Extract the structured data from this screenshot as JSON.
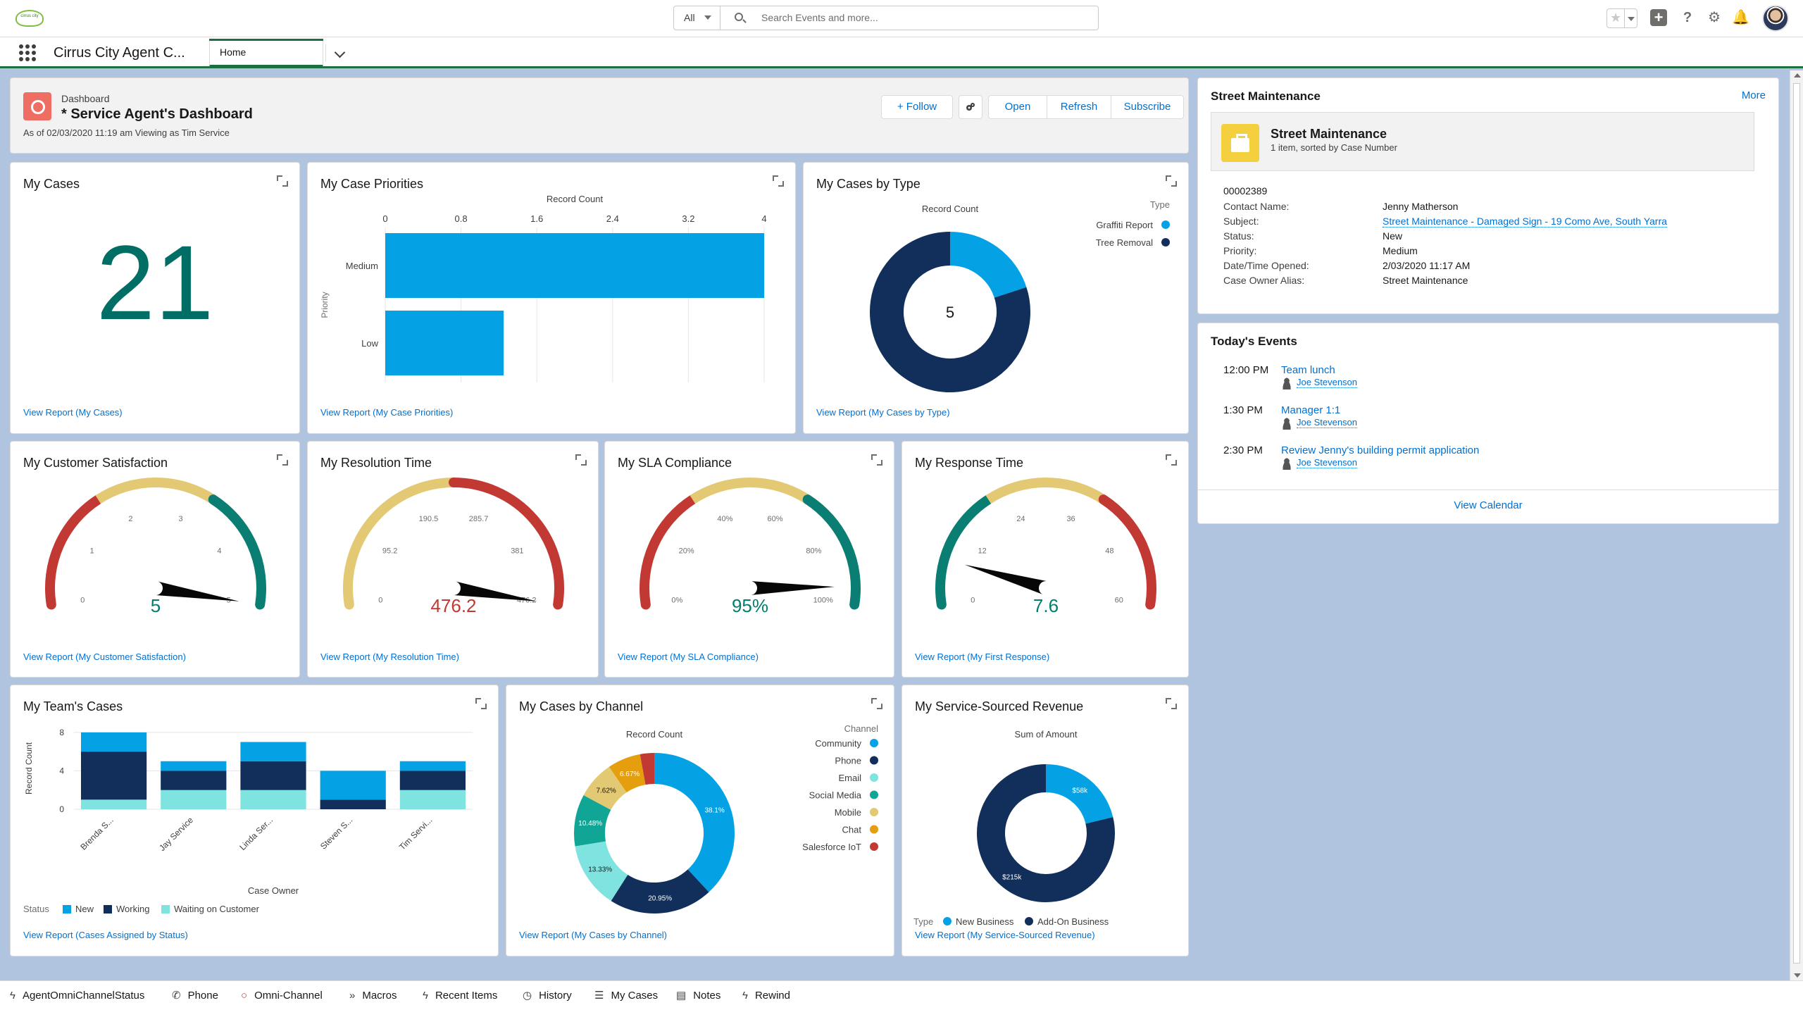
{
  "app": {
    "name": "Cirrus City Agent C...",
    "tab": "Home",
    "logo_text": "cirrus city"
  },
  "search": {
    "scope": "All",
    "placeholder": "Search Events and more..."
  },
  "header": {
    "label": "Dashboard",
    "title": "* Service Agent's Dashboard",
    "subtitle": "As of 02/03/2020 11:19 am Viewing as Tim Service",
    "buttons": {
      "follow": "+ Follow",
      "open": "Open",
      "refresh": "Refresh",
      "subscribe": "Subscribe"
    }
  },
  "cards": {
    "my_cases": {
      "title": "My Cases",
      "value": "21",
      "link": "View Report (My Cases)"
    },
    "priorities": {
      "title": "My Case Priorities",
      "link": "View Report (My Case Priorities)"
    },
    "by_type": {
      "title": "My Cases by Type",
      "link": "View Report (My Cases by Type)"
    },
    "csat": {
      "title": "My Customer Satisfaction",
      "link": "View Report (My Customer Satisfaction)"
    },
    "resolution": {
      "title": "My Resolution Time",
      "link": "View Report (My Resolution Time)"
    },
    "sla": {
      "title": "My SLA Compliance",
      "link": "View Report (My SLA Compliance)"
    },
    "response": {
      "title": "My Response Time",
      "link": "View Report (My First Response)"
    },
    "team": {
      "title": "My Team's Cases",
      "link": "View Report (Cases Assigned by Status)"
    },
    "channel": {
      "title": "My Cases by Channel",
      "link": "View Report (My Cases by Channel)"
    },
    "revenue": {
      "title": "My Service-Sourced Revenue",
      "link": "View Report (My Service-Sourced Revenue)"
    }
  },
  "chart_data": [
    {
      "type": "bar",
      "orientation": "horizontal",
      "xlabel": "Record Count",
      "ylabel": "Priority",
      "categories": [
        "Medium",
        "Low"
      ],
      "values": [
        4,
        1.25
      ],
      "xticks": [
        "0",
        "0.8",
        "1.6",
        "2.4",
        "3.2",
        "4"
      ],
      "xlim": [
        0,
        4
      ],
      "color": "#04a2e5"
    },
    {
      "type": "pie",
      "donut": true,
      "title": "Record Count",
      "legend_title": "Type",
      "center_label": "5",
      "labels": [
        "Graffiti Report",
        "Tree Removal"
      ],
      "values": [
        1,
        4
      ],
      "colors": [
        "#04a2e5",
        "#122f5c"
      ]
    },
    {
      "type": "gauge",
      "value_label": "5",
      "value": 5,
      "min": 0,
      "max": 5,
      "ticks": [
        "0",
        "1",
        "2",
        "3",
        "4",
        "5"
      ],
      "bands": [
        "#c23934",
        "#e3c974",
        "#0a7e73"
      ],
      "value_color": "#007e6e"
    },
    {
      "type": "gauge",
      "value_label": "476.2",
      "value": 476.2,
      "min": 0,
      "max": 476.2,
      "ticks": [
        "0",
        "95.2",
        "190.5",
        "285.7",
        "381",
        "476.2"
      ],
      "bands": [
        "#e3c974",
        "#c23934"
      ],
      "value_color": "#c23934"
    },
    {
      "type": "gauge",
      "value_label": "95%",
      "value": 95,
      "min": 0,
      "max": 100,
      "ticks": [
        "0%",
        "20%",
        "40%",
        "60%",
        "80%",
        "100%"
      ],
      "bands": [
        "#c23934",
        "#e3c974",
        "#0a7e73"
      ],
      "value_color": "#007e6e"
    },
    {
      "type": "gauge",
      "value_label": "7.6",
      "value": 7.6,
      "min": 0,
      "max": 60,
      "ticks": [
        "0",
        "12",
        "24",
        "36",
        "48",
        "60"
      ],
      "bands": [
        "#0a7e73",
        "#e3c974",
        "#c23934"
      ],
      "value_color": "#007e6e"
    },
    {
      "type": "bar",
      "stacked": true,
      "xlabel": "Case Owner",
      "ylabel": "Record Count",
      "yticks": [
        "0",
        "4",
        "8"
      ],
      "ylim": [
        0,
        8.5
      ],
      "categories": [
        "Brenda S...",
        "Jay Service",
        "Linda Ser...",
        "Steven S...",
        "Tim Servi..."
      ],
      "legend_title": "Status",
      "series": [
        {
          "name": "Waiting on Customer",
          "color": "#7fe3df",
          "values": [
            1,
            2,
            2,
            0,
            2
          ]
        },
        {
          "name": "Working",
          "color": "#122f5c",
          "values": [
            5,
            2,
            3,
            1,
            2
          ]
        },
        {
          "name": "New",
          "color": "#04a2e5",
          "values": [
            2,
            1,
            2,
            3,
            1
          ]
        }
      ]
    },
    {
      "type": "pie",
      "donut": true,
      "title": "Record Count",
      "legend_title": "Channel",
      "labels": [
        "Community",
        "Phone",
        "Email",
        "Social Media",
        "Mobile",
        "Chat",
        "Salesforce IoT"
      ],
      "values": [
        38.1,
        20.95,
        13.33,
        10.48,
        7.62,
        6.67,
        2.85
      ],
      "slice_labels": [
        "38.1%",
        "20.95%",
        "13.33%",
        "10.48%",
        "7.62%",
        "6.67%",
        ""
      ],
      "colors": [
        "#04a2e5",
        "#122f5c",
        "#7fe3df",
        "#11a596",
        "#e3c974",
        "#e49e0e",
        "#c23934"
      ]
    },
    {
      "type": "pie",
      "donut": true,
      "title": "Sum of Amount",
      "legend_title": "Type",
      "labels": [
        "New Business",
        "Add-On Business"
      ],
      "values": [
        58,
        215
      ],
      "slice_labels": [
        "$58k",
        "$215k"
      ],
      "colors": [
        "#04a2e5",
        "#122f5c"
      ]
    }
  ],
  "street": {
    "title": "Street Maintenance",
    "more": "More",
    "box_title": "Street Maintenance",
    "box_sub": "1 item, sorted by Case Number",
    "case_number": "00002389",
    "fields": [
      {
        "label": "Contact Name:",
        "value": "Jenny Matherson"
      },
      {
        "label": "Subject:",
        "value": "Street Maintenance - Damaged Sign - 19 Como Ave, South Yarra"
      },
      {
        "label": "Status:",
        "value": "New"
      },
      {
        "label": "Priority:",
        "value": "Medium"
      },
      {
        "label": "Date/Time Opened:",
        "value": "2/03/2020 11:17 AM"
      },
      {
        "label": "Case Owner Alias:",
        "value": "Street Maintenance"
      }
    ]
  },
  "events": {
    "title": "Today's Events",
    "items": [
      {
        "time": "12:00 PM",
        "title": "Team lunch",
        "user": "Joe Stevenson"
      },
      {
        "time": "1:30 PM",
        "title": "Manager 1:1",
        "user": "Joe Stevenson"
      },
      {
        "time": "2:30 PM",
        "title": "Review Jenny's building permit application",
        "user": "Joe Stevenson"
      }
    ],
    "view_calendar": "View Calendar"
  },
  "utility": [
    "AgentOmniChannelStatus",
    "Phone",
    "Omni-Channel",
    "Macros",
    "Recent Items",
    "History",
    "My Cases",
    "Notes",
    "Rewind"
  ]
}
